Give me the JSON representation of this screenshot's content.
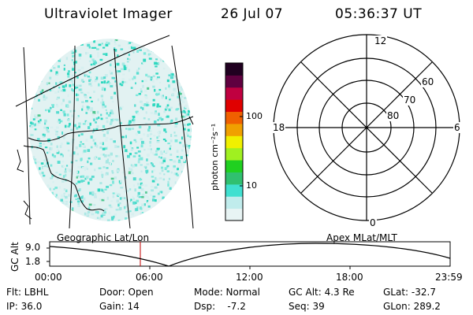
{
  "header": {
    "title": "Ultraviolet Imager",
    "date": "26 Jul 07",
    "time": "05:36:37 UT"
  },
  "colorbar": {
    "unit_label": "photon cm⁻²s⁻¹",
    "tick_100": "100",
    "tick_10": "10",
    "colors": [
      "#e8f4f4",
      "#c0ecec",
      "#40e0d0",
      "#30c070",
      "#20d020",
      "#a0f020",
      "#f0f000",
      "#f0a000",
      "#f06000",
      "#e00000",
      "#c00040",
      "#600040",
      "#200020"
    ]
  },
  "polar_plot": {
    "mlt_labels": {
      "top": "12",
      "bottom": "0",
      "left": "18",
      "right": "6"
    },
    "mlat_labels": [
      "60",
      "70",
      "80"
    ]
  },
  "orbit_plot": {
    "left_title": "Geographic Lat/Lon",
    "right_title": "Apex MLat/MLT",
    "y_axis_label": "GC Alt",
    "y_max_label": "9.0",
    "y_min_label": "1.8",
    "x_ticks": [
      "00:00",
      "06:00",
      "12:00",
      "18:00",
      "23:59"
    ],
    "current_time_marker_color": "#c00000"
  },
  "status": {
    "row1": {
      "flt": "Flt: LBHL",
      "door": "Door: Open",
      "mode": "Mode: Normal",
      "gcalt": "GC Alt: 4.3 Re",
      "glat": "GLat: -32.7"
    },
    "row2": {
      "ip": "IP: 36.0",
      "gain": "Gain: 14",
      "dsp": "Dsp:    -7.2",
      "seq": "Seq: 39",
      "glon": "GLon: 289.2"
    }
  }
}
